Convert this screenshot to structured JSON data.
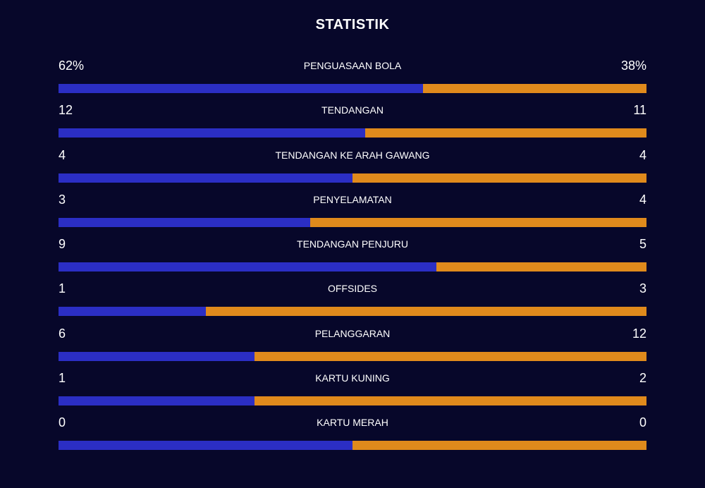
{
  "title": "STATISTIK",
  "colors": {
    "background": "#07072a",
    "home_bar": "#2b2ec4",
    "away_bar": "#e08a1c",
    "text": "#ffffff"
  },
  "stats": [
    {
      "label": "PENGUASAAN BOLA",
      "home": "62%",
      "away": "38%",
      "home_share": 0.62
    },
    {
      "label": "TENDANGAN",
      "home": "12",
      "away": "11",
      "home_share": 0.5217
    },
    {
      "label": "TENDANGAN KE ARAH GAWANG",
      "home": "4",
      "away": "4",
      "home_share": 0.5
    },
    {
      "label": "PENYELAMATAN",
      "home": "3",
      "away": "4",
      "home_share": 0.4286
    },
    {
      "label": "TENDANGAN PENJURU",
      "home": "9",
      "away": "5",
      "home_share": 0.6429
    },
    {
      "label": "OFFSIDES",
      "home": "1",
      "away": "3",
      "home_share": 0.25
    },
    {
      "label": "PELANGGARAN",
      "home": "6",
      "away": "12",
      "home_share": 0.3333
    },
    {
      "label": "KARTU KUNING",
      "home": "1",
      "away": "2",
      "home_share": 0.3333
    },
    {
      "label": "KARTU MERAH",
      "home": "0",
      "away": "0",
      "home_share": 0.5
    }
  ]
}
